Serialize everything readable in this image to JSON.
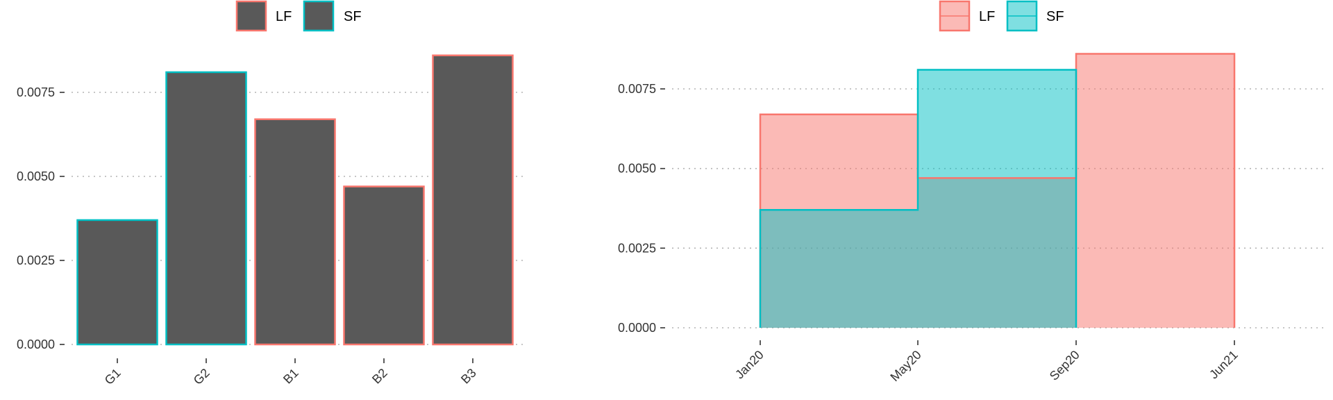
{
  "colors": {
    "LF": "#F8766D",
    "SF": "#00BFC4",
    "bar_fill": "#595959",
    "LF_fill": "#F8766D",
    "SF_fill": "#00BFC4",
    "overlap_fill": "#7FBCBA",
    "grid": "#b3b3b3",
    "text": "#333333"
  },
  "chart_data": [
    {
      "type": "bar",
      "legend": {
        "position": "top",
        "entries": [
          "LF",
          "SF"
        ]
      },
      "categories": [
        "G1",
        "G2",
        "B1",
        "B2",
        "B3"
      ],
      "values": [
        0.0037,
        0.0081,
        0.0067,
        0.0047,
        0.0086
      ],
      "group": [
        "SF",
        "SF",
        "LF",
        "LF",
        "LF"
      ],
      "ylim": [
        0,
        0.0088
      ],
      "yticks": [
        "0.0000",
        "0.0025",
        "0.0050",
        "0.0075"
      ],
      "grid": "horizontal dotted"
    },
    {
      "type": "area",
      "step": true,
      "legend": {
        "position": "top",
        "entries": [
          "LF",
          "SF"
        ]
      },
      "xticks": [
        "Jan20",
        "May20",
        "Sep20",
        "Jun21"
      ],
      "series": [
        {
          "name": "LF",
          "segments": [
            {
              "from": "Jan20",
              "to": "May20",
              "value": 0.0067
            },
            {
              "from": "May20",
              "to": "Sep20",
              "value": 0.0047
            },
            {
              "from": "Sep20",
              "to": "Jun21",
              "value": 0.0086
            }
          ]
        },
        {
          "name": "SF",
          "segments": [
            {
              "from": "Jan20",
              "to": "May20",
              "value": 0.0037
            },
            {
              "from": "May20",
              "to": "Sep20",
              "value": 0.0081
            }
          ]
        }
      ],
      "ylim": [
        0,
        0.0088
      ],
      "yticks": [
        "0.0000",
        "0.0025",
        "0.0050",
        "0.0075"
      ],
      "grid": "horizontal dotted"
    }
  ]
}
